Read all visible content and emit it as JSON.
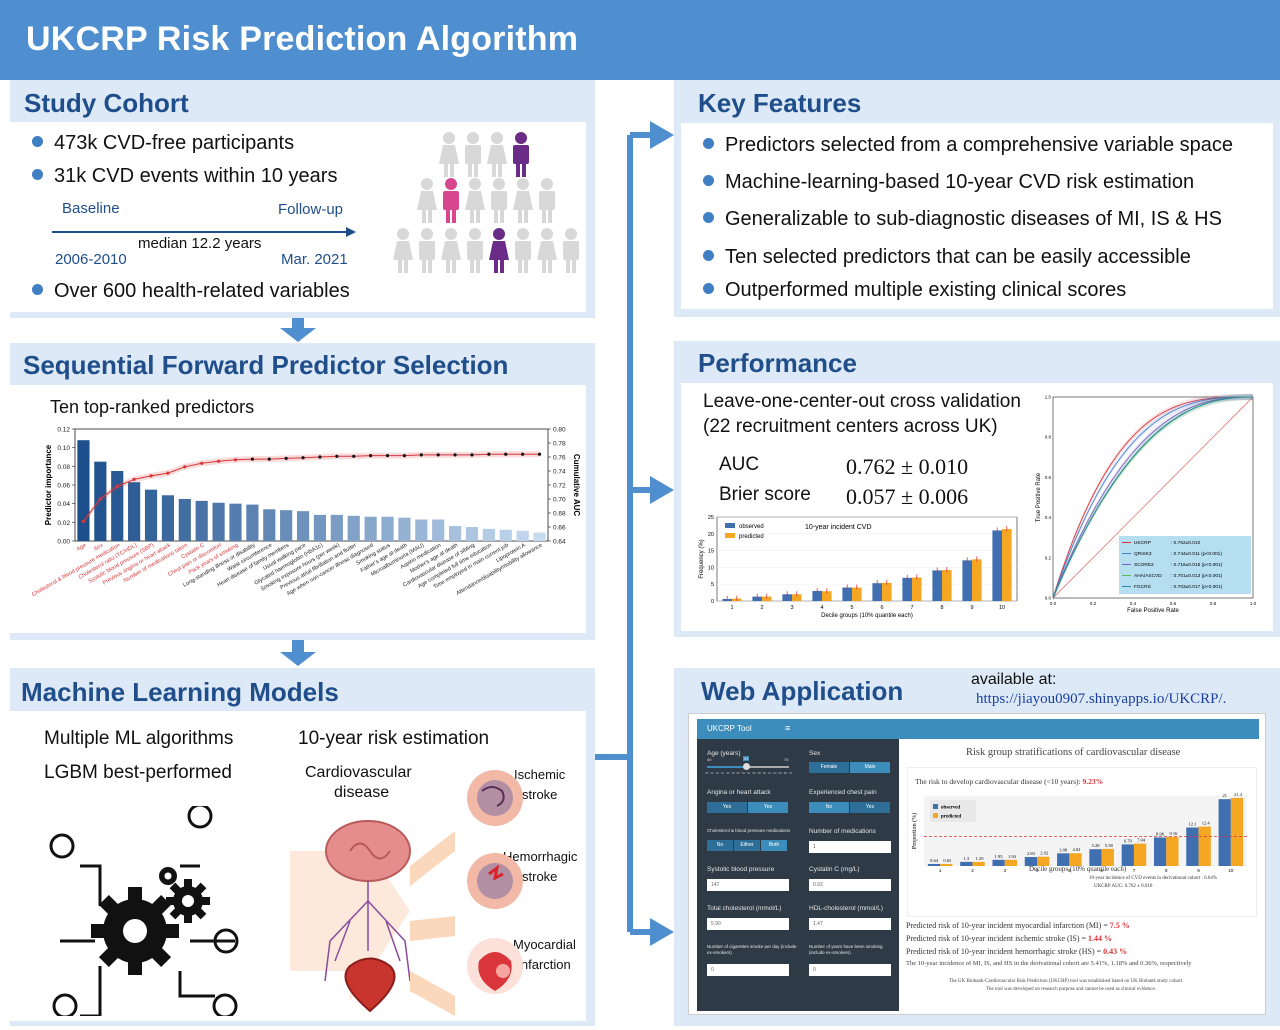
{
  "header": {
    "title": "UKCRP Risk Prediction Algorithm"
  },
  "colors": {
    "header": "#4f8fd0",
    "panel": "#dde9f7",
    "title_text": "#1f4e8a",
    "bullet": "#3f7fc4",
    "bar_dark": "#1c4f8c",
    "bar_light": "#c6daf0",
    "curve": "#d9353a",
    "observed": "#3f6fb0",
    "predicted": "#f5a623",
    "highlight_red": "#d9353a",
    "person_gray": "#d8d8d8",
    "person_purple": "#6a2c87",
    "person_pink": "#d6478e"
  },
  "study_cohort": {
    "title": "Study Cohort",
    "bullets": [
      "473k CVD-free participants",
      "31k CVD events within 10 years",
      "Over 600 health-related variables"
    ],
    "timeline": {
      "baseline": "Baseline",
      "followup": "Follow-up",
      "median": "median 12.2 years",
      "start": "2006-2010",
      "end": "Mar. 2021"
    }
  },
  "key_features": {
    "title": "Key Features",
    "bullets": [
      "Predictors selected from a comprehensive variable space",
      "Machine-learning-based 10-year CVD risk estimation",
      "Generalizable to sub-diagnostic diseases of MI, IS & HS",
      "Ten selected predictors that can be easily accessible",
      "Outperformed multiple existing clinical scores"
    ]
  },
  "selection": {
    "title": "Sequential Forward Predictor Selection",
    "subtitle": "Ten top-ranked predictors"
  },
  "performance": {
    "title": "Performance",
    "line1": "Leave-one-center-out cross validation",
    "line2": "(22 recruitment centers across UK)",
    "auc_label": "AUC",
    "auc_value": "0.762 ± 0.010",
    "brier_label": "Brier score",
    "brier_value": "0.057 ± 0.006"
  },
  "ml_models": {
    "title": "Machine Learning Models",
    "line1": "Multiple ML algorithms",
    "line2": "LGBM best-performed",
    "risk_title": "10-year risk estimation",
    "cvd_label1": "Cardiovascular",
    "cvd_label2": "disease",
    "outcomes": [
      {
        "l1": "Ischemic",
        "l2": "stroke"
      },
      {
        "l1": "Hemorrhagic",
        "l2": "stroke"
      },
      {
        "l1": "Myocardial",
        "l2": "infarction"
      }
    ]
  },
  "web_app": {
    "title": "Web Application",
    "available": "available at:",
    "url": "https://jiayou0907.shinyapps.io/UKCRP/.",
    "tool_name": "UKCRP Tool",
    "menu_icon": "≡",
    "fields": {
      "age": "Age (years)",
      "sex": "Sex",
      "female": "Female",
      "male": "Male",
      "angina": "Angina or heart attack",
      "chest_pain": "Experienced chest pain",
      "yes": "Yes",
      "no": "No",
      "chol_meds": "Cholesterol & blood pressure medications",
      "num_meds": "Number of medications",
      "either": "Either",
      "both": "Both",
      "sbp": "Systolic blood pressure",
      "cystatin": "Cystatin C (mg/L)",
      "total_chol": "Total cholesterol (mmol/L)",
      "hdl": "HDL-cholesterol (mmol/L)",
      "cigs": "Number of cigarettes smoke per day (include ex-smokers)",
      "years_smoking": "Number of years have been smoking (include ex-smokers)",
      "v_num_meds": "1",
      "v_sbp": "147",
      "v_cystatin": "0.93",
      "v_chol": "5.90",
      "v_hdl": "1.47",
      "v_cigs": "0",
      "v_years": "0",
      "age_min": "40",
      "age_max": "70",
      "age_value": "55",
      "age_ticks": [
        "38",
        "40",
        "42",
        "44",
        "46",
        "48",
        "50",
        "52",
        "54",
        "56",
        "58",
        "60",
        "62",
        "64",
        "66",
        "68",
        "70"
      ]
    },
    "main_title": "Risk group stratifications of cardiovascular disease",
    "risk_label": "The risk to develop cardiovascular disease (<10 years): ",
    "risk_value": "9.23%",
    "chart_legend": [
      "observed",
      "predicted"
    ],
    "chart_ylabel": "Proportion (%)",
    "chart_xlabel": "Decile groups (10% quantile each)",
    "chart_note": "10-year incidence of CVD events in derivational cohort : 6.64%",
    "chart_auc": "UKCRP AUC: 0.762 ± 0.010",
    "mi_label": "Predicted risk of 10-year incident myocardial infarction (MI) = ",
    "mi_value": "7.5 %",
    "is_label": "Predicted risk of 10-year incident ischemic stroke (IS) = ",
    "is_value": "1.44 %",
    "hs_label": "Predicted risk of 10-year incident hemorrhagic stroke (HS) = ",
    "hs_value": "0.43 %",
    "incidence_note": "The 10-year incidence of MI, IS, and HS in the derivational cohort are 5.41%, 1.18% and 0.36%, respectively",
    "footer1": "The UK Biobank-Cardiovascular Risk Prediction (UKCRP) tool was established based on UK Biobank study cohort.",
    "footer2": "The tool was developed on research purpose and cannot be used as clinical evidence."
  },
  "chart_data": [
    {
      "type": "bar",
      "ylabel": "Predictor importance",
      "y2label": "Cumulative AUC",
      "ylim": [
        0.0,
        0.12
      ],
      "y2lim": [
        0.64,
        0.8
      ],
      "yticks": [
        "0.00",
        "0.02",
        "0.04",
        "0.06",
        "0.08",
        "0.10",
        "0.12"
      ],
      "y2ticks": [
        "0.64",
        "0.66",
        "0.68",
        "0.70",
        "0.72",
        "0.74",
        "0.76",
        "0.78",
        "0.80"
      ],
      "categories": [
        "Age",
        "Sex",
        "Cholesterol & blood pressure medication",
        "Cholesterol ratio (TC/HDL)",
        "Systolic blood pressure (SBP)",
        "Previous angina or heart attack",
        "Number of medications taken",
        "Cystatin C",
        "Chest pain or discomfort",
        "Pack years of smoking",
        "Long-standing illness or disability",
        "Waist circumference",
        "Heart disease of family members",
        "Usual walking pace",
        "Glycated haemoglobin (HbA1c)",
        "Smoking exposure hours (per week)",
        "Previous atrial fibrillation and flutter",
        "Age when non-cancer illness diagnosed",
        "Smoking status",
        "Father's age at death",
        "Microalbuminuria (MAU)",
        "Aspirin medication",
        "Mother's age at death",
        "Cardiovascular disease of sibling",
        "Age completed full time education",
        "Time employed in main current job",
        "Lipoprotein A",
        "Attendance/disability/mobility allowance"
      ],
      "highlighted": 10,
      "values": [
        0.108,
        0.085,
        0.075,
        0.063,
        0.055,
        0.049,
        0.045,
        0.043,
        0.041,
        0.04,
        0.039,
        0.034,
        0.033,
        0.032,
        0.028,
        0.028,
        0.027,
        0.026,
        0.026,
        0.025,
        0.023,
        0.023,
        0.016,
        0.015,
        0.013,
        0.012,
        0.011,
        0.009
      ],
      "series": [
        {
          "name": "Cumulative AUC",
          "values": [
            0.668,
            0.7,
            0.718,
            0.728,
            0.733,
            0.737,
            0.746,
            0.751,
            0.754,
            0.756,
            0.757,
            0.757,
            0.758,
            0.759,
            0.76,
            0.761,
            0.761,
            0.762,
            0.762,
            0.762,
            0.763,
            0.763,
            0.763,
            0.763,
            0.764,
            0.764,
            0.764,
            0.764
          ]
        }
      ]
    },
    {
      "type": "bar",
      "title": "10-year incident CVD",
      "xlabel": "Decile groups (10% quantile each)",
      "ylabel": "Frequency (%)",
      "ylim": [
        0,
        25
      ],
      "yticks": [
        "0",
        "5",
        "10",
        "15",
        "20",
        "25"
      ],
      "categories": [
        "1",
        "2",
        "3",
        "4",
        "5",
        "6",
        "7",
        "8",
        "9",
        "10"
      ],
      "series": [
        {
          "name": "observed",
          "values": [
            0.6,
            1.3,
            2.0,
            3.0,
            4.0,
            5.3,
            6.9,
            9.1,
            12.1,
            21.0
          ]
        },
        {
          "name": "predicted",
          "values": [
            0.7,
            1.3,
            2.0,
            2.9,
            4.0,
            5.4,
            7.0,
            9.2,
            12.4,
            21.4
          ]
        }
      ]
    },
    {
      "type": "line",
      "xlabel": "False Positive Rate",
      "ylabel": "True Positive Rate",
      "xlim": [
        0,
        1
      ],
      "ylim": [
        0,
        1
      ],
      "ticks": [
        "0.0",
        "0.2",
        "0.4",
        "0.6",
        "0.8",
        "1.0"
      ],
      "series": [
        {
          "name": "UKCRP",
          "label": ": 0.762±0.010",
          "auc": 0.762
        },
        {
          "name": "QRISK3",
          "label": ": 0.744±0.011 (p<0.001)",
          "auc": 0.744
        },
        {
          "name": "SCORE2",
          "label": ": 0.716±0.015 (p<0.001)",
          "auc": 0.716
        },
        {
          "name": "AHA/ASCVD",
          "label": ": 0.701±0.013 (p<0.001)",
          "auc": 0.701
        },
        {
          "name": "FGCRS",
          "label": ": 0.703±0.017 (p<0.001)",
          "auc": 0.703
        }
      ]
    },
    {
      "type": "bar",
      "title": "The risk to develop cardiovascular disease (<10 years): 9.23%",
      "xlabel": "Decile groups (10% quantile each)",
      "ylabel": "Proportion (%)",
      "categories": [
        "1",
        "2",
        "3",
        "4",
        "5",
        "6",
        "7",
        "8",
        "9",
        "10"
      ],
      "series": [
        {
          "name": "observed",
          "values": [
            0.64,
            1.3,
            1.95,
            2.83,
            3.98,
            5.28,
            6.79,
            8.96,
            12.1,
            21
          ]
        },
        {
          "name": "predicted",
          "values": [
            0.65,
            1.29,
            1.94,
            2.92,
            4.02,
            5.38,
            7.04,
            9.16,
            12.4,
            21.4
          ]
        }
      ],
      "labels": [
        "0.64",
        "0.65",
        "1.3",
        "1.29",
        "1.95",
        "1.94",
        "2.83",
        "2.92",
        "3.98",
        "4.02",
        "5.28",
        "5.38",
        "6.79",
        "7.04",
        "8.96",
        "9.16",
        "12.1",
        "12.4",
        "21",
        "21.4"
      ],
      "threshold": 9.23
    }
  ]
}
